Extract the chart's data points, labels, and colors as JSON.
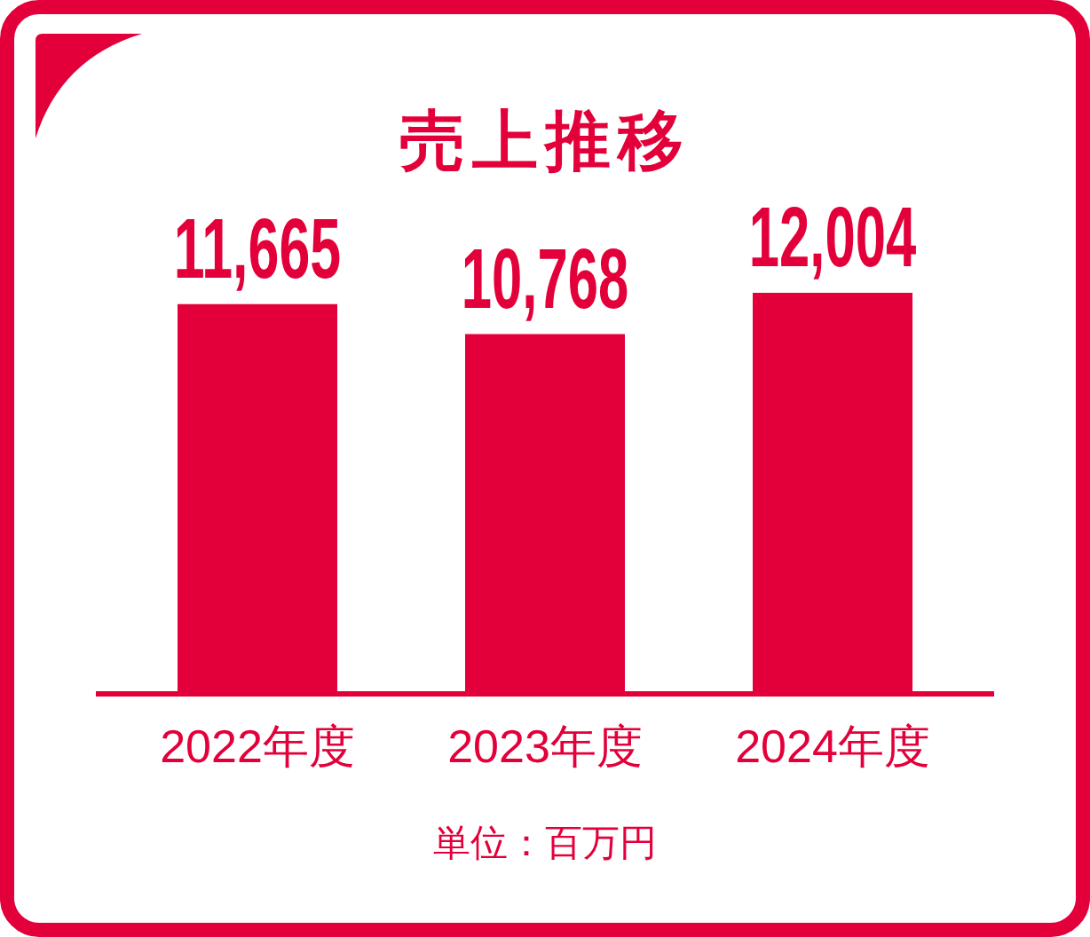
{
  "chart_data": {
    "type": "bar",
    "title": "売上推移",
    "categories": [
      "2022年度",
      "2023年度",
      "2024年度"
    ],
    "values": [
      11665,
      10768,
      12004
    ],
    "color": "#e3003a",
    "value_labels": [
      "11,665",
      "10,768",
      "12,004"
    ],
    "annotations": [
      "単位：百万円"
    ]
  }
}
